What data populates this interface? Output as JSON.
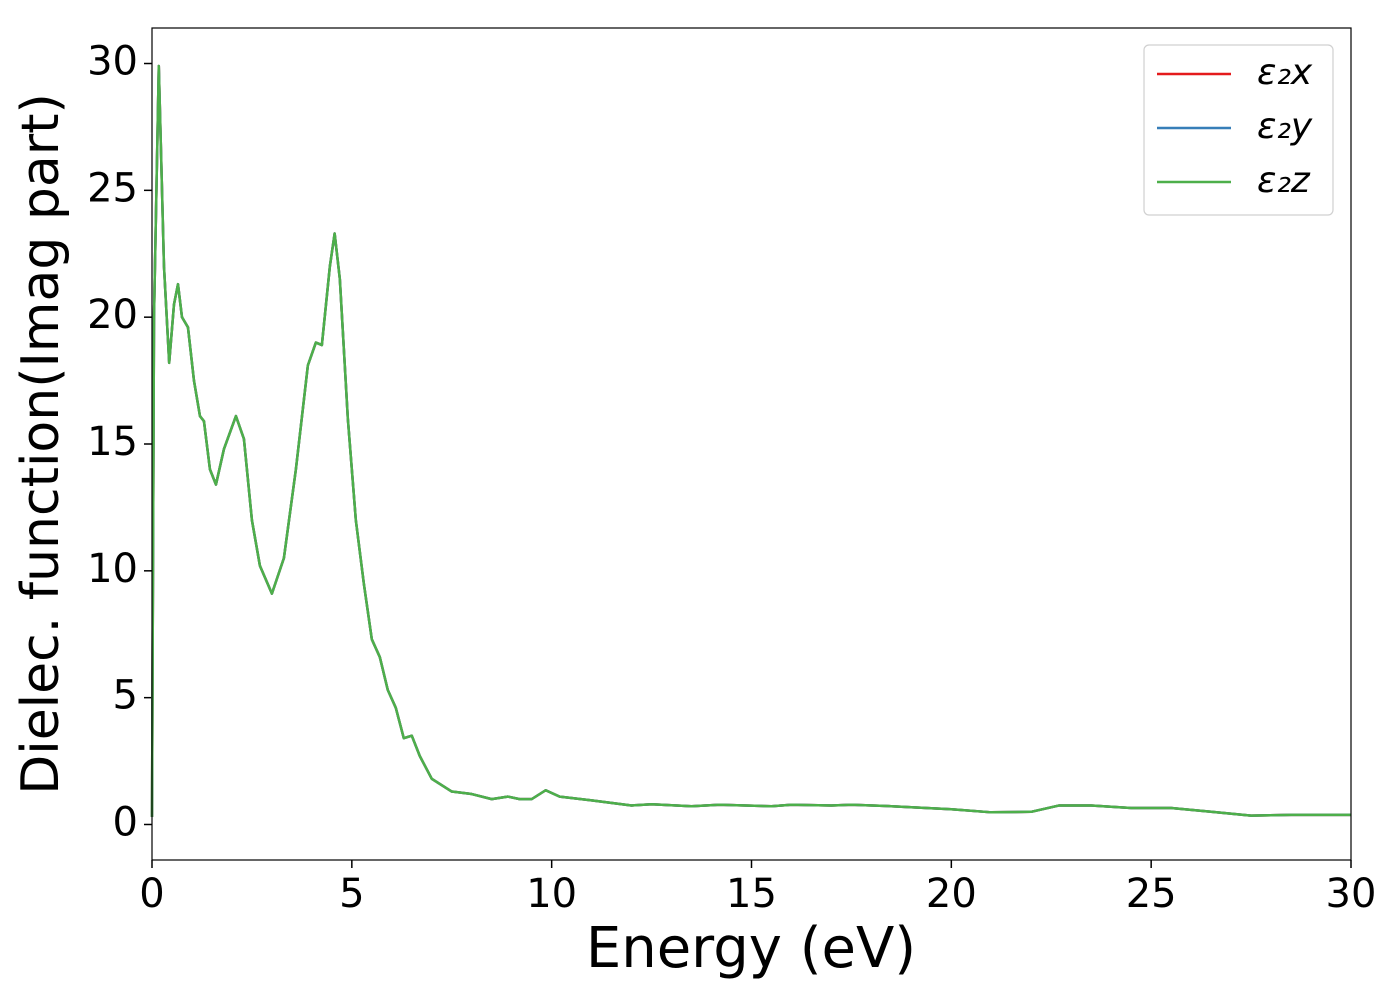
{
  "chart_data": {
    "type": "line",
    "xlabel": "Energy (eV)",
    "ylabel": "Dielec. function(Imag part)",
    "x": [
      0.0,
      0.05,
      0.17,
      0.3,
      0.43,
      0.55,
      0.65,
      0.75,
      0.9,
      1.05,
      1.2,
      1.3,
      1.45,
      1.6,
      1.8,
      2.1,
      2.3,
      2.5,
      2.7,
      3.0,
      3.3,
      3.6,
      3.9,
      4.1,
      4.25,
      4.45,
      4.57,
      4.7,
      4.9,
      5.1,
      5.3,
      5.5,
      5.7,
      5.9,
      6.1,
      6.3,
      6.5,
      6.7,
      7.0,
      7.5,
      8.0,
      8.5,
      8.9,
      9.2,
      9.5,
      9.85,
      10.2,
      11,
      12,
      12.5,
      13.5,
      14.2,
      15.5,
      16,
      17,
      17.5,
      18.5,
      20,
      21,
      22,
      22.7,
      23.5,
      24.5,
      25.5,
      26.5,
      27.5,
      28.5,
      30
    ],
    "series": [
      {
        "name": "ε₂x",
        "color": "#e41a1c",
        "values": [
          0.3,
          20,
          29.9,
          22,
          18.2,
          20.5,
          21.3,
          20,
          19.6,
          17.5,
          16.1,
          15.9,
          14,
          13.4,
          14.8,
          16.1,
          15.2,
          12,
          10.2,
          9.1,
          10.5,
          14,
          18.1,
          19.0,
          18.9,
          22,
          23.3,
          21.5,
          16,
          12,
          9.5,
          7.3,
          6.6,
          5.3,
          4.6,
          3.4,
          3.5,
          2.7,
          1.8,
          1.3,
          1.2,
          1.0,
          1.1,
          1.0,
          1.0,
          1.35,
          1.1,
          0.95,
          0.75,
          0.8,
          0.72,
          0.78,
          0.72,
          0.78,
          0.75,
          0.78,
          0.72,
          0.6,
          0.48,
          0.5,
          0.75,
          0.75,
          0.65,
          0.65,
          0.5,
          0.35,
          0.38,
          0.38
        ]
      },
      {
        "name": "ε₂y",
        "color": "#377eb8",
        "values": [
          0.3,
          20,
          29.9,
          22,
          18.2,
          20.5,
          21.3,
          20,
          19.6,
          17.5,
          16.1,
          15.9,
          14,
          13.4,
          14.8,
          16.1,
          15.2,
          12,
          10.2,
          9.1,
          10.5,
          14,
          18.1,
          19.0,
          18.9,
          22,
          23.3,
          21.5,
          16,
          12,
          9.5,
          7.3,
          6.6,
          5.3,
          4.6,
          3.4,
          3.5,
          2.7,
          1.8,
          1.3,
          1.2,
          1.0,
          1.1,
          1.0,
          1.0,
          1.35,
          1.1,
          0.95,
          0.75,
          0.8,
          0.72,
          0.78,
          0.72,
          0.78,
          0.75,
          0.78,
          0.72,
          0.6,
          0.48,
          0.5,
          0.75,
          0.75,
          0.65,
          0.65,
          0.5,
          0.35,
          0.38,
          0.38
        ]
      },
      {
        "name": "ε₂z",
        "color": "#4daf4a",
        "values": [
          0.3,
          20,
          29.9,
          22,
          18.2,
          20.5,
          21.3,
          20,
          19.6,
          17.5,
          16.1,
          15.9,
          14,
          13.4,
          14.8,
          16.1,
          15.2,
          12,
          10.2,
          9.1,
          10.5,
          14,
          18.1,
          19.0,
          18.9,
          22,
          23.3,
          21.5,
          16,
          12,
          9.5,
          7.3,
          6.6,
          5.3,
          4.6,
          3.4,
          3.5,
          2.7,
          1.8,
          1.3,
          1.2,
          1.0,
          1.1,
          1.0,
          1.0,
          1.35,
          1.1,
          0.95,
          0.75,
          0.8,
          0.72,
          0.78,
          0.72,
          0.78,
          0.75,
          0.78,
          0.72,
          0.6,
          0.48,
          0.5,
          0.75,
          0.75,
          0.65,
          0.65,
          0.5,
          0.35,
          0.38,
          0.38
        ]
      }
    ],
    "xlim": [
      0,
      30
    ],
    "xticks": [
      0,
      5,
      10,
      15,
      20,
      25,
      30
    ],
    "ylim": [
      -1.4,
      31.4
    ],
    "yticks": [
      0,
      5,
      10,
      15,
      20,
      25,
      30
    ],
    "legend": "upper right",
    "grid": false
  }
}
